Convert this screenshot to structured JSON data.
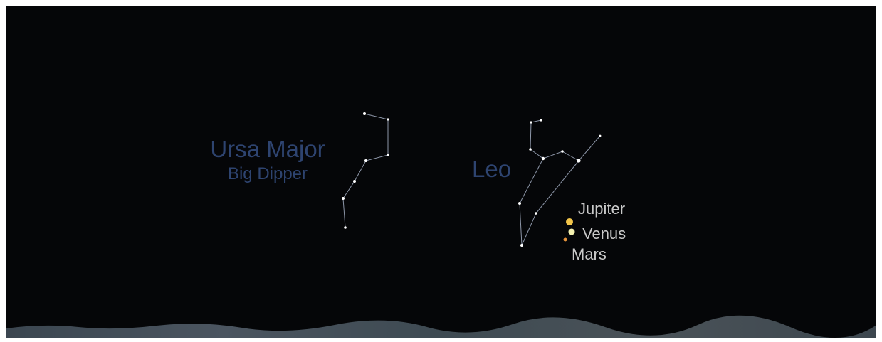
{
  "constellations": [
    {
      "name": "Ursa Major",
      "subtitle": "Big Dipper"
    },
    {
      "name": "Leo"
    }
  ],
  "planets": [
    {
      "name": "Jupiter"
    },
    {
      "name": "Venus"
    },
    {
      "name": "Mars"
    }
  ]
}
